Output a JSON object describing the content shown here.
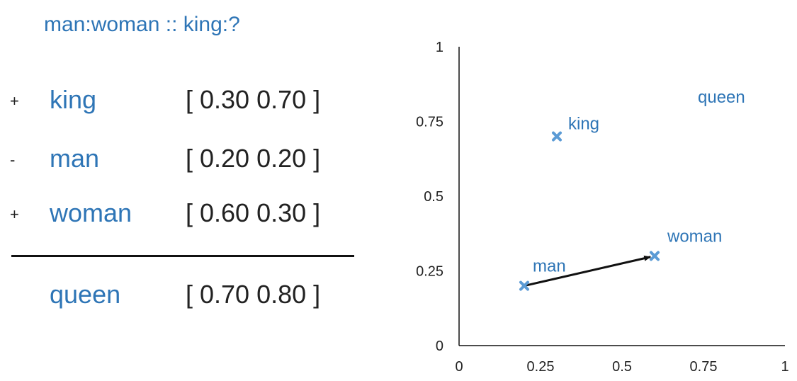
{
  "analogy": {
    "title": "man:woman :: king:?"
  },
  "equation": {
    "rows": [
      {
        "op": "+",
        "word": "king",
        "vector": "[ 0.30 0.70 ]"
      },
      {
        "op": "-",
        "word": "man",
        "vector": "[ 0.20 0.20 ]"
      },
      {
        "op": "+",
        "word": "woman",
        "vector": "[ 0.60 0.30 ]"
      }
    ],
    "result": {
      "word": "queen",
      "vector": "[ 0.70 0.80 ]"
    }
  },
  "colors": {
    "accent": "#2e75b6",
    "marker": "#5b9bd5",
    "text": "#222222",
    "axis": "#111111"
  },
  "chart_data": {
    "type": "scatter",
    "xlim": [
      0,
      1
    ],
    "ylim": [
      0,
      1
    ],
    "x_ticks": [
      "0",
      "0.25",
      "0.5",
      "0.75",
      "1"
    ],
    "y_ticks": [
      "0",
      "0.25",
      "0.5",
      "0.75",
      "1"
    ],
    "x_tick_values": [
      0,
      0.25,
      0.5,
      0.75,
      1
    ],
    "y_tick_values": [
      0,
      0.25,
      0.5,
      0.75,
      1
    ],
    "grid": false,
    "points": [
      {
        "label": "king",
        "x": 0.3,
        "y": 0.7,
        "marker": true
      },
      {
        "label": "man",
        "x": 0.2,
        "y": 0.2,
        "marker": true
      },
      {
        "label": "woman",
        "x": 0.6,
        "y": 0.3,
        "marker": true
      },
      {
        "label": "queen",
        "x": 0.7,
        "y": 0.8,
        "marker": false
      }
    ],
    "arrows": [
      {
        "from": "man",
        "to": "woman"
      }
    ]
  }
}
